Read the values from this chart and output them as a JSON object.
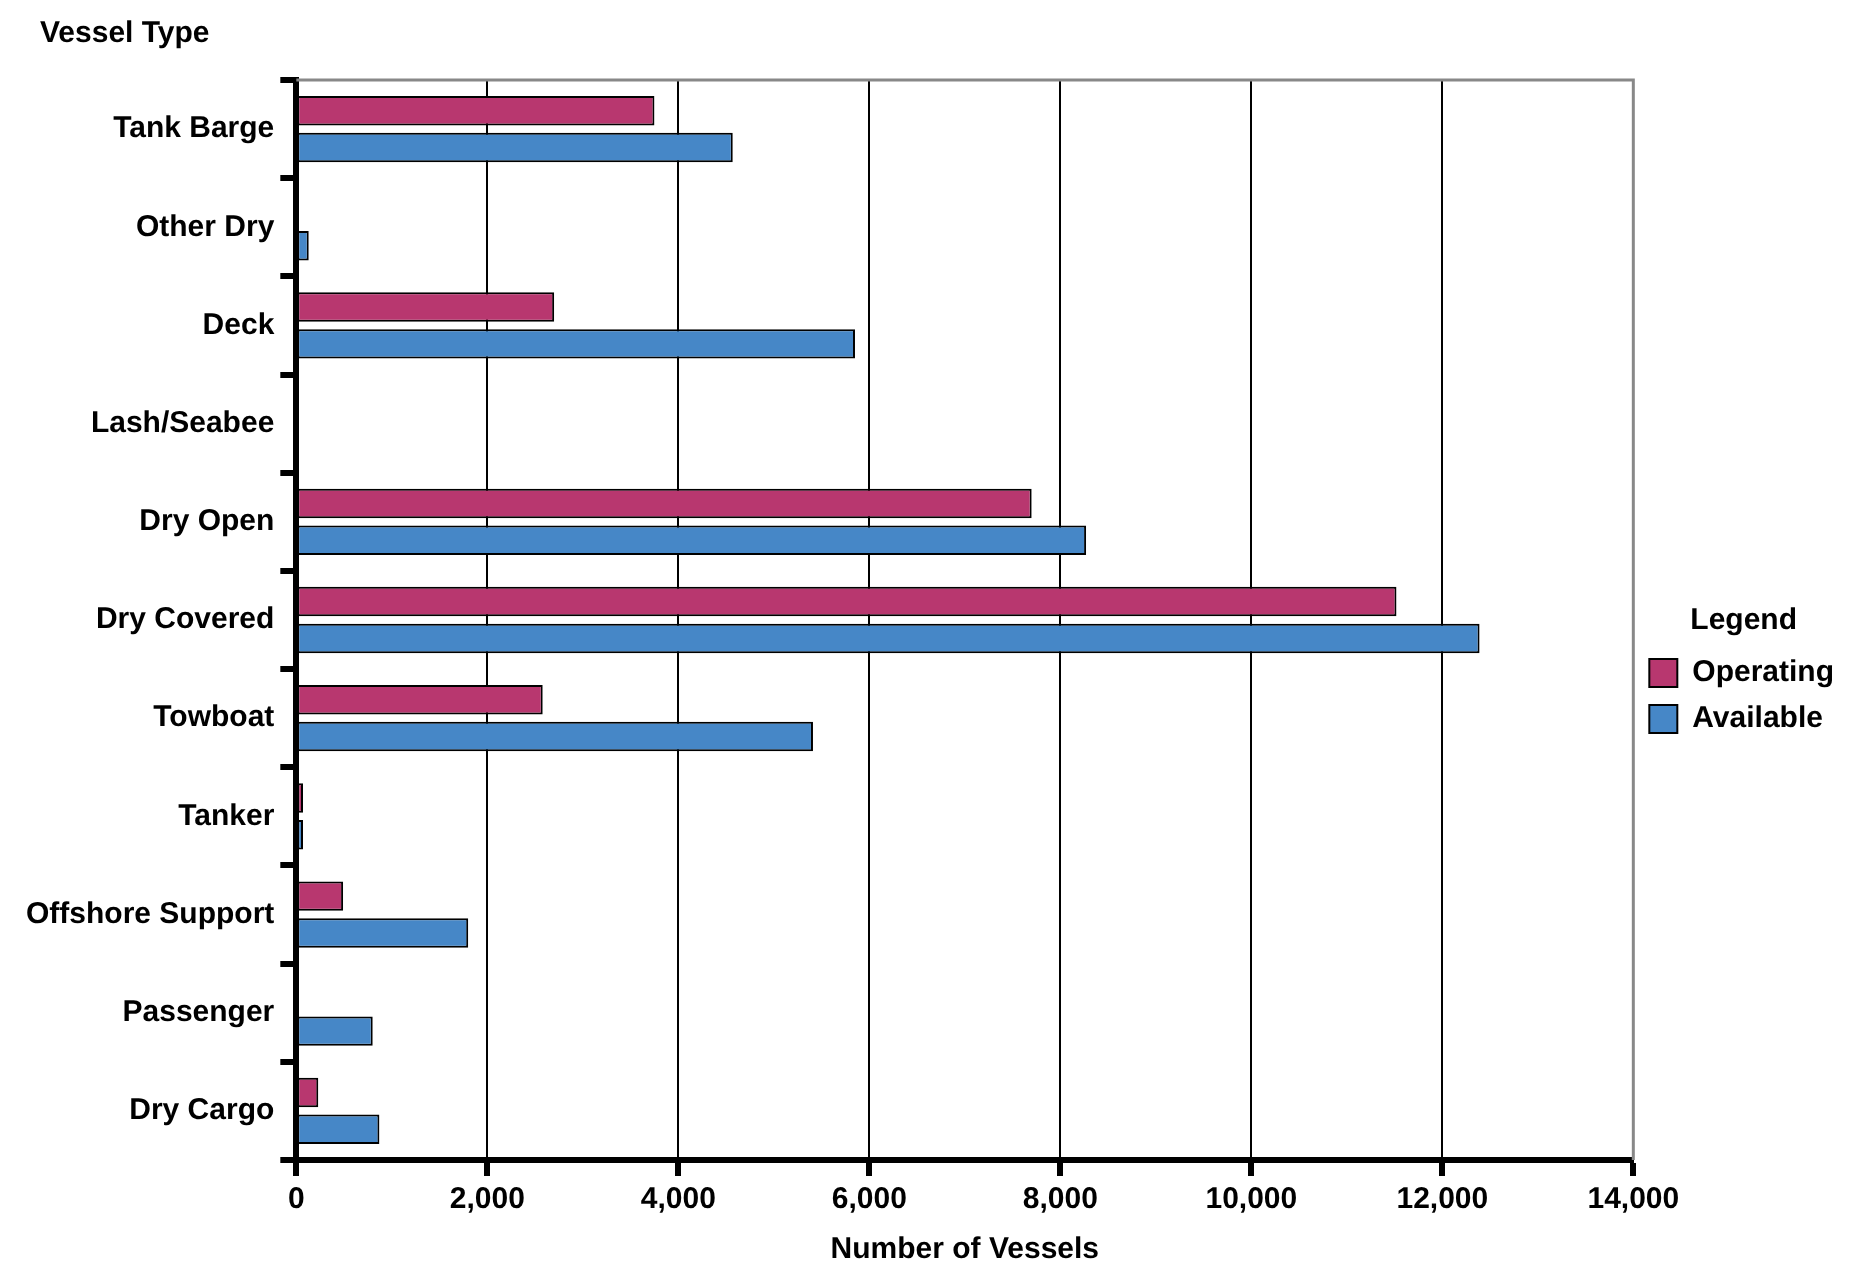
{
  "chart_data": {
    "type": "bar",
    "orientation": "horizontal",
    "ylabel": "Vessel Type",
    "xlabel": "Number of Vessels",
    "legend_title": "Legend",
    "legend": "right",
    "grid": "x",
    "categories": [
      "Tank Barge",
      "Other Dry",
      "Deck",
      "Lash/Seabee",
      "Dry Open",
      "Dry Covered",
      "Towboat",
      "Tanker",
      "Offshore Support",
      "Passenger",
      "Dry Cargo"
    ],
    "series": [
      {
        "name": "Operating",
        "color": "#b8376f",
        "values": [
          3750,
          0,
          2700,
          0,
          7700,
          11520,
          2580,
          70,
          490,
          0,
          230
        ]
      },
      {
        "name": "Available",
        "color": "#4687c7",
        "values": [
          4570,
          130,
          5850,
          0,
          8270,
          12390,
          5410,
          70,
          1800,
          800,
          870
        ]
      }
    ],
    "xlim": [
      0,
      14000
    ],
    "xticks": [
      0,
      {
        "value": 2000,
        "label": "2,000"
      },
      {
        "value": 4000,
        "label": "4,000"
      },
      {
        "value": 6000,
        "label": "6,000"
      },
      {
        "value": 8000,
        "label": "8,000"
      },
      {
        "value": 10000,
        "label": "10,000"
      },
      {
        "value": 12000,
        "label": "12,000"
      },
      {
        "value": 14000,
        "label": "14,000"
      }
    ]
  }
}
